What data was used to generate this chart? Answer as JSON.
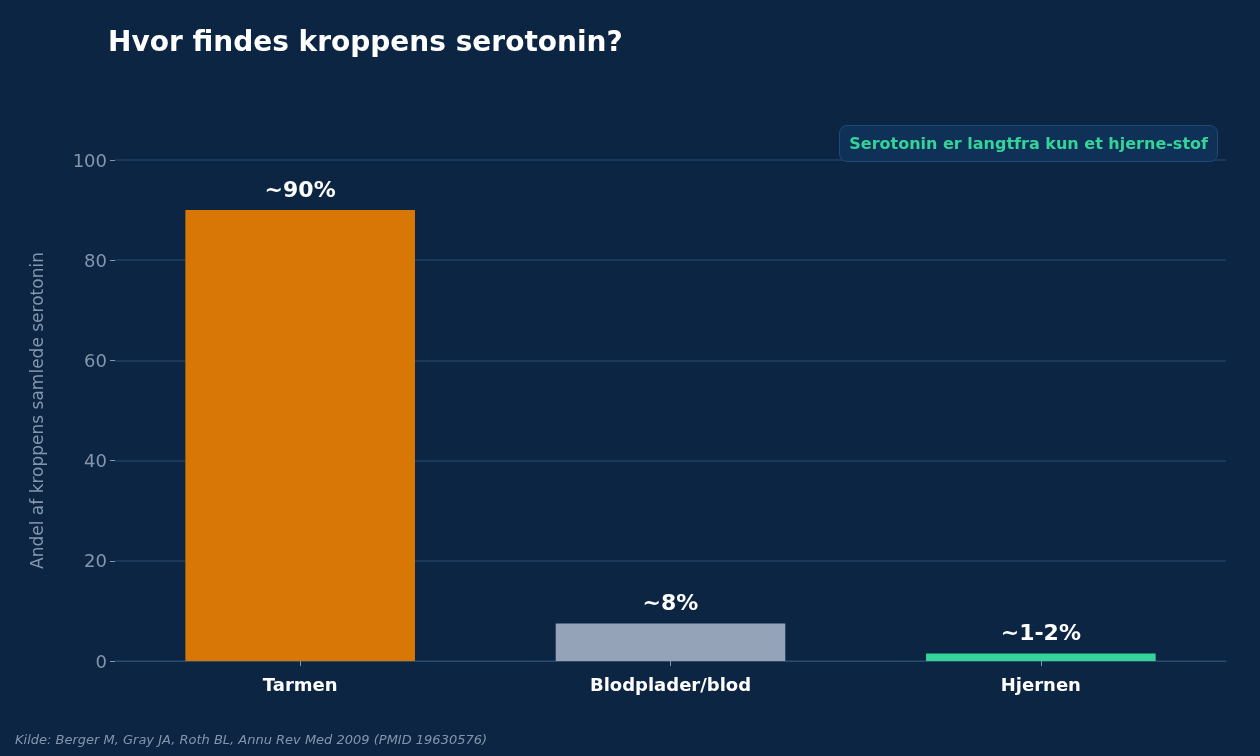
{
  "chart_data": {
    "type": "bar",
    "title": "Hvor findes kroppens serotonin?",
    "ylabel": "Andel af kroppens samlede serotonin",
    "categories": [
      "Tarmen",
      "Blodplader/blod",
      "Hjernen"
    ],
    "values": [
      90,
      7.5,
      1.5
    ],
    "colors": [
      "#d97706",
      "#94a3b8",
      "#34d399"
    ],
    "value_labels": [
      "~90%",
      "~8%",
      "~1-2%"
    ],
    "ylim": [
      0,
      100
    ],
    "yticks": [
      0,
      20,
      40,
      60,
      80,
      100
    ],
    "grid": "y",
    "annotations": [
      "Serotonin er langtfra kun et hjerne-stof",
      "Kilde: Berger M, Gray JA, Roth BL, Annu Rev Med 2009 (PMID 19630576)"
    ]
  }
}
